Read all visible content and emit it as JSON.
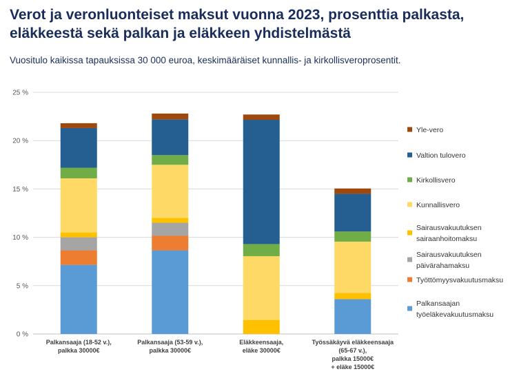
{
  "title": "Verot ja veronluonteiset maksut vuonna 2023, prosenttia palkasta, eläkkeestä sekä palkan ja eläkkeen yhdistelmästä",
  "subtitle": "Vuositulo kaikissa tapauksissa 30 000 euroa, keskimääräiset kunnallis- ja kirkollisveroprosentit.",
  "chart_data": {
    "type": "bar",
    "stacked": true,
    "ylim": [
      0,
      25
    ],
    "yticks": [
      0,
      5,
      10,
      15,
      20,
      25
    ],
    "ytick_labels": [
      "0 %",
      "5 %",
      "10 %",
      "15 %",
      "20 %",
      "25 %"
    ],
    "grid": true,
    "legend_position": "right",
    "categories": [
      [
        "Palkansaaja (18-52 v.),",
        "palkka 30000€"
      ],
      [
        "Palkansaaja (53-59 v.),",
        "palkka 30000€"
      ],
      [
        "Eläkkeensaaja,",
        "eläke 30000€"
      ],
      [
        "Työssäkäyvä eläkkeensaaja",
        "(65-67 v.),",
        "palkka 15000€",
        "+ eläke 15000€"
      ]
    ],
    "series": [
      {
        "name": [
          "Palkansaajan",
          "työeläkevakuutusmaksu"
        ],
        "color": "#5b9bd5",
        "values": [
          7.15,
          8.65,
          0,
          3.6
        ]
      },
      {
        "name": [
          "Työttömyysvakuutusmaksu"
        ],
        "color": "#ed7d31",
        "values": [
          1.5,
          1.5,
          0,
          0
        ]
      },
      {
        "name": [
          "Sairausvakuutuksen",
          "päivärahamaksu"
        ],
        "color": "#a5a5a5",
        "values": [
          1.35,
          1.35,
          0,
          0
        ]
      },
      {
        "name": [
          "Sairausvakuutuksen",
          "sairaanhoitomaksu"
        ],
        "color": "#ffc000",
        "values": [
          0.5,
          0.5,
          1.45,
          0.65
        ]
      },
      {
        "name": [
          "Kunnallisvero"
        ],
        "color": "#ffd966",
        "values": [
          5.6,
          5.5,
          6.6,
          5.3
        ]
      },
      {
        "name": [
          "Kirkollisvero"
        ],
        "color": "#70ad47",
        "values": [
          1.1,
          1.0,
          1.25,
          1.05
        ]
      },
      {
        "name": [
          "Valtion tulovero"
        ],
        "color": "#255e91",
        "values": [
          4.1,
          3.7,
          12.85,
          3.9
        ]
      },
      {
        "name": [
          "Yle-vero"
        ],
        "color": "#9e480e",
        "values": [
          0.5,
          0.6,
          0.55,
          0.55
        ]
      }
    ]
  }
}
